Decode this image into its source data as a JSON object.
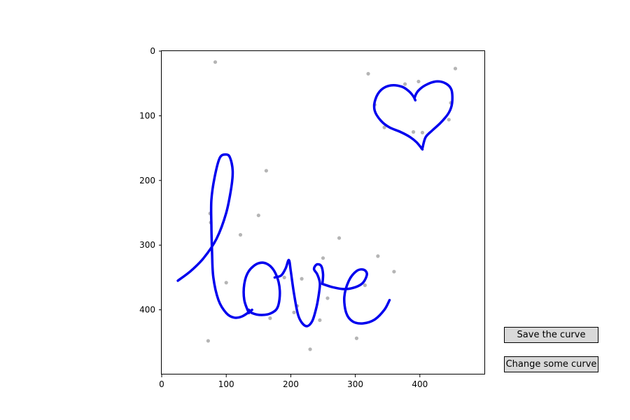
{
  "buttons": {
    "save_label": "Save the curve",
    "change_label": "Change some curve"
  },
  "colors": {
    "curve": "#0000ee",
    "points": "#b5b5b5",
    "button_bg": "#d9d9d9"
  },
  "chart_data": {
    "type": "line",
    "title": "",
    "xlabel": "",
    "ylabel": "",
    "xlim": [
      0,
      500
    ],
    "ylim": [
      500,
      0
    ],
    "y_inverted": true,
    "grid": false,
    "legend": "none",
    "xticks": [
      0,
      100,
      200,
      300,
      400
    ],
    "yticks": [
      0,
      100,
      200,
      300,
      400
    ],
    "series": [
      {
        "values": [
          [
            25,
            355
          ],
          [
            45,
            340
          ],
          [
            65,
            320
          ],
          [
            85,
            290
          ],
          [
            100,
            250
          ],
          [
            108,
            210
          ],
          [
            110,
            185
          ],
          [
            106,
            165
          ],
          [
            100,
            160
          ],
          [
            90,
            165
          ],
          [
            82,
            195
          ],
          [
            77,
            230
          ],
          [
            77,
            270
          ],
          [
            78,
            310
          ],
          [
            80,
            350
          ],
          [
            88,
            385
          ],
          [
            100,
            405
          ],
          [
            112,
            412
          ],
          [
            125,
            410
          ],
          [
            140,
            400
          ]
        ]
      },
      {
        "values": [
          [
            135,
            405
          ],
          [
            128,
            385
          ],
          [
            128,
            360
          ],
          [
            135,
            340
          ],
          [
            150,
            328
          ],
          [
            165,
            330
          ],
          [
            177,
            345
          ],
          [
            183,
            370
          ],
          [
            180,
            395
          ],
          [
            170,
            405
          ],
          [
            155,
            408
          ],
          [
            140,
            405
          ],
          [
            135,
            400
          ]
        ]
      },
      {
        "values": [
          [
            175,
            350
          ],
          [
            185,
            347
          ],
          [
            192,
            336
          ],
          [
            197,
            323
          ],
          [
            200,
            340
          ],
          [
            205,
            375
          ],
          [
            212,
            410
          ],
          [
            223,
            425
          ],
          [
            233,
            418
          ],
          [
            240,
            395
          ],
          [
            244,
            372
          ],
          [
            245,
            358
          ],
          [
            241,
            345
          ],
          [
            236,
            337
          ],
          [
            240,
            330
          ],
          [
            247,
            332
          ],
          [
            250,
            345
          ],
          [
            249,
            360
          ]
        ]
      },
      {
        "values": [
          [
            249,
            360
          ],
          [
            265,
            365
          ],
          [
            283,
            368
          ],
          [
            300,
            365
          ],
          [
            312,
            358
          ],
          [
            318,
            345
          ],
          [
            313,
            338
          ],
          [
            302,
            340
          ],
          [
            290,
            355
          ],
          [
            283,
            380
          ],
          [
            286,
            405
          ],
          [
            296,
            418
          ],
          [
            312,
            421
          ],
          [
            330,
            415
          ],
          [
            345,
            400
          ],
          [
            353,
            385
          ]
        ]
      },
      {
        "values": [
          [
            404,
            152
          ],
          [
            395,
            141
          ],
          [
            385,
            133
          ],
          [
            370,
            125
          ],
          [
            353,
            118
          ],
          [
            340,
            108
          ],
          [
            330,
            92
          ],
          [
            331,
            75
          ],
          [
            340,
            60
          ],
          [
            355,
            53
          ],
          [
            372,
            55
          ],
          [
            383,
            62
          ],
          [
            390,
            70
          ],
          [
            393,
            76
          ],
          [
            392,
            72
          ],
          [
            397,
            62
          ],
          [
            408,
            53
          ],
          [
            425,
            47
          ],
          [
            440,
            50
          ],
          [
            449,
            60
          ],
          [
            450,
            80
          ],
          [
            445,
            95
          ],
          [
            433,
            110
          ],
          [
            420,
            122
          ],
          [
            409,
            133
          ],
          [
            404,
            150
          ]
        ]
      }
    ],
    "scatter_points": [
      [
        83,
        17
      ],
      [
        320,
        35
      ],
      [
        398,
        47
      ],
      [
        377,
        51
      ],
      [
        455,
        27
      ],
      [
        330,
        83
      ],
      [
        448,
        80
      ],
      [
        445,
        106
      ],
      [
        345,
        118
      ],
      [
        390,
        125
      ],
      [
        404,
        126
      ],
      [
        403,
        150
      ],
      [
        162,
        185
      ],
      [
        75,
        251
      ],
      [
        76,
        265
      ],
      [
        150,
        254
      ],
      [
        122,
        284
      ],
      [
        275,
        289
      ],
      [
        335,
        317
      ],
      [
        250,
        320
      ],
      [
        360,
        341
      ],
      [
        190,
        350
      ],
      [
        217,
        352
      ],
      [
        315,
        362
      ],
      [
        100,
        358
      ],
      [
        257,
        382
      ],
      [
        210,
        394
      ],
      [
        205,
        404
      ],
      [
        245,
        416
      ],
      [
        168,
        413
      ],
      [
        72,
        448
      ],
      [
        302,
        444
      ],
      [
        230,
        461
      ]
    ]
  }
}
